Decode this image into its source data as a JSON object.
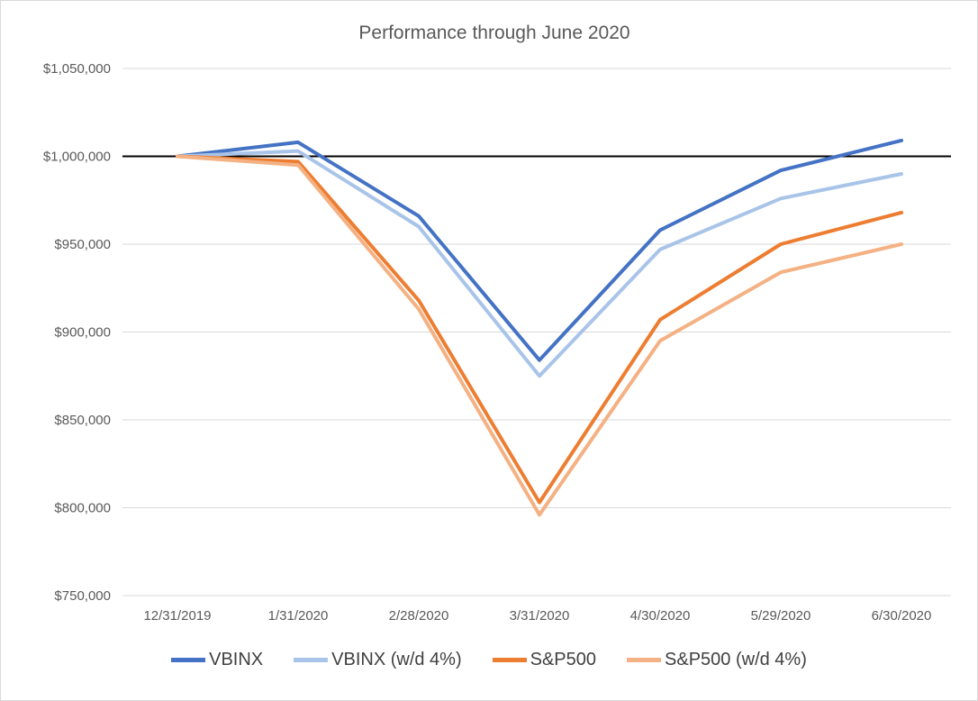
{
  "chart_data": {
    "type": "line",
    "title": "Performance through June 2020",
    "categories": [
      "12/31/2019",
      "1/31/2020",
      "2/28/2020",
      "3/31/2020",
      "4/30/2020",
      "5/29/2020",
      "6/30/2020"
    ],
    "series": [
      {
        "name": "VBINX",
        "color": "#4472C4",
        "values": [
          1000000,
          1008000,
          966000,
          884000,
          958000,
          992000,
          1009000
        ]
      },
      {
        "name": "VBINX (w/d 4%)",
        "color": "#A9C4E9",
        "values": [
          1000000,
          1003000,
          960000,
          875000,
          947000,
          976000,
          990000
        ]
      },
      {
        "name": "S&P500",
        "color": "#ED7D31",
        "values": [
          1000000,
          997000,
          918000,
          803000,
          907000,
          950000,
          968000
        ]
      },
      {
        "name": "S&P500 (w/d 4%)",
        "color": "#F4B183",
        "values": [
          1000000,
          995000,
          913000,
          796000,
          895000,
          934000,
          950000
        ]
      }
    ],
    "ylim": [
      750000,
      1050000
    ],
    "y_ticks": [
      {
        "value": 1050000,
        "label": "$1,050,000"
      },
      {
        "value": 1000000,
        "label": "$1,000,000"
      },
      {
        "value": 950000,
        "label": "$950,000"
      },
      {
        "value": 900000,
        "label": "$900,000"
      },
      {
        "value": 850000,
        "label": "$850,000"
      },
      {
        "value": 800000,
        "label": "$800,000"
      },
      {
        "value": 750000,
        "label": "$750,000"
      }
    ],
    "reference_line": {
      "value": 1000000,
      "color": "#000000"
    },
    "grid": true,
    "legend_position": "bottom",
    "xlabel": "",
    "ylabel": ""
  },
  "colors": {
    "grid": "#d9d9d9",
    "axis_text": "#595959",
    "title_text": "#595959",
    "legend_text": "#404040",
    "border": "#d9d9d9"
  }
}
